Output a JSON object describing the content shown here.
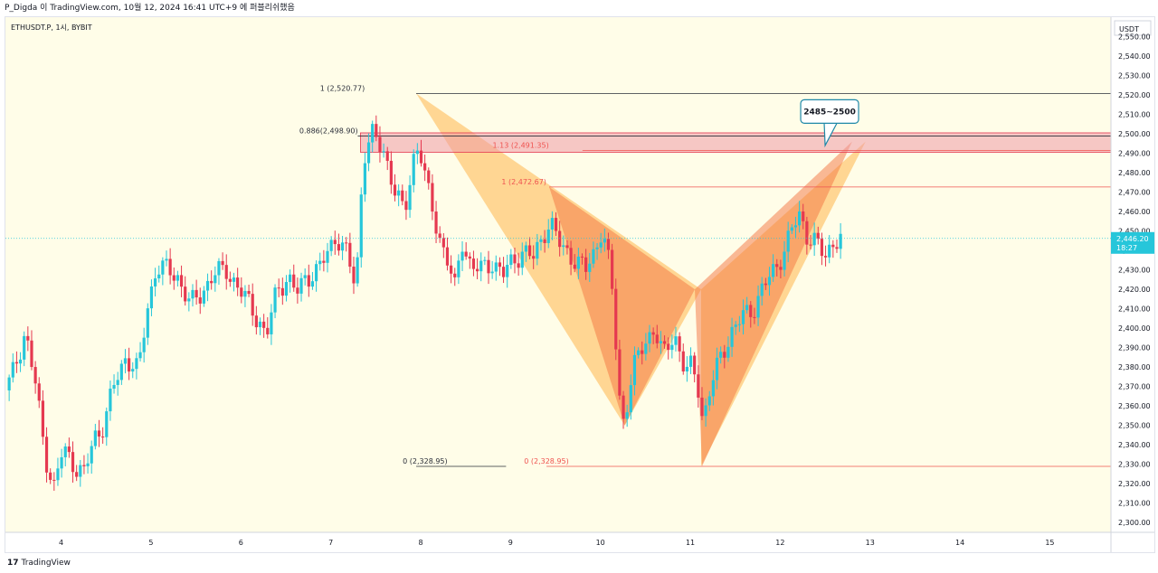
{
  "header": {
    "caption": "P_Digda 이 TradingView.com, 10월 12, 2024 16:41 UTC+9 에 퍼블리쉬했음"
  },
  "footer": {
    "brand": "TradingView",
    "logo_glyph": "17"
  },
  "chart_data": {
    "type": "candlestick",
    "symbol_line": "ETHUSDT.P, 1시, BYBIT",
    "currency": "USDT",
    "y_range": [
      2295,
      2560
    ],
    "y_ticks": [
      "2,550.00",
      "2,540.00",
      "2,530.00",
      "2,520.00",
      "2,510.00",
      "2,500.00",
      "2,490.00",
      "2,480.00",
      "2,470.00",
      "2,460.00",
      "2,450.00",
      "2,440.00",
      "2,430.00",
      "2,420.00",
      "2,410.00",
      "2,400.00",
      "2,390.00",
      "2,380.00",
      "2,370.00",
      "2,360.00",
      "2,350.00",
      "2,340.00",
      "2,330.00",
      "2,320.00",
      "2,310.00",
      "2,300.00"
    ],
    "x_ticks": [
      {
        "label": "4",
        "day": 4
      },
      {
        "label": "5",
        "day": 5
      },
      {
        "label": "6",
        "day": 6
      },
      {
        "label": "7",
        "day": 7
      },
      {
        "label": "8",
        "day": 8
      },
      {
        "label": "9",
        "day": 9
      },
      {
        "label": "10",
        "day": 10
      },
      {
        "label": "11",
        "day": 11
      },
      {
        "label": "12",
        "day": 12
      },
      {
        "label": "13",
        "day": 13
      },
      {
        "label": "14",
        "day": 14
      },
      {
        "label": "15",
        "day": 15
      }
    ],
    "x_range_days": [
      3.38,
      15.68
    ],
    "last_price": {
      "value": 2446.2,
      "label": "2,446.20",
      "countdown": "18:27"
    },
    "colors": {
      "up": "#26c6da",
      "down": "#e53950",
      "background": "#fffde8",
      "price_tag": "#26c6da"
    },
    "price_path": [
      [
        3.38,
        2368
      ],
      [
        3.45,
        2375
      ],
      [
        3.6,
        2398
      ],
      [
        3.72,
        2370
      ],
      [
        3.82,
        2335
      ],
      [
        3.92,
        2318
      ],
      [
        4.02,
        2338
      ],
      [
        4.14,
        2330
      ],
      [
        4.26,
        2325
      ],
      [
        4.36,
        2343
      ],
      [
        4.45,
        2348
      ],
      [
        4.6,
        2372
      ],
      [
        4.72,
        2385
      ],
      [
        4.86,
        2378
      ],
      [
        4.96,
        2410
      ],
      [
        5.06,
        2432
      ],
      [
        5.18,
        2430
      ],
      [
        5.3,
        2426
      ],
      [
        5.44,
        2412
      ],
      [
        5.56,
        2418
      ],
      [
        5.7,
        2428
      ],
      [
        5.84,
        2430
      ],
      [
        5.98,
        2420
      ],
      [
        6.1,
        2412
      ],
      [
        6.22,
        2402
      ],
      [
        6.28,
        2395
      ],
      [
        6.4,
        2420
      ],
      [
        6.52,
        2426
      ],
      [
        6.62,
        2418
      ],
      [
        6.72,
        2426
      ],
      [
        6.86,
        2430
      ],
      [
        6.98,
        2440
      ],
      [
        7.06,
        2448
      ],
      [
        7.18,
        2438
      ],
      [
        7.28,
        2420
      ],
      [
        7.36,
        2488
      ],
      [
        7.45,
        2500
      ],
      [
        7.6,
        2490
      ],
      [
        7.72,
        2470
      ],
      [
        7.82,
        2458
      ],
      [
        7.92,
        2488
      ],
      [
        7.98,
        2495
      ],
      [
        8.08,
        2470
      ],
      [
        8.2,
        2448
      ],
      [
        8.3,
        2435
      ],
      [
        8.38,
        2420
      ],
      [
        8.46,
        2445
      ],
      [
        8.56,
        2432
      ],
      [
        8.68,
        2430
      ],
      [
        8.8,
        2434
      ],
      [
        8.92,
        2428
      ],
      [
        9.02,
        2434
      ],
      [
        9.14,
        2440
      ],
      [
        9.26,
        2436
      ],
      [
        9.38,
        2450
      ],
      [
        9.44,
        2455
      ],
      [
        9.56,
        2442
      ],
      [
        9.7,
        2436
      ],
      [
        9.84,
        2430
      ],
      [
        9.94,
        2440
      ],
      [
        10.02,
        2452
      ],
      [
        10.12,
        2426
      ],
      [
        10.22,
        2360
      ],
      [
        10.26,
        2352
      ],
      [
        10.36,
        2378
      ],
      [
        10.48,
        2392
      ],
      [
        10.6,
        2400
      ],
      [
        10.7,
        2385
      ],
      [
        10.82,
        2398
      ],
      [
        10.94,
        2378
      ],
      [
        11.02,
        2380
      ],
      [
        11.1,
        2368
      ],
      [
        11.14,
        2352
      ],
      [
        11.24,
        2372
      ],
      [
        11.36,
        2388
      ],
      [
        11.46,
        2398
      ],
      [
        11.58,
        2406
      ],
      [
        11.7,
        2410
      ],
      [
        11.82,
        2422
      ],
      [
        11.94,
        2430
      ],
      [
        12.06,
        2442
      ],
      [
        12.14,
        2452
      ],
      [
        12.22,
        2458
      ],
      [
        12.3,
        2448
      ],
      [
        12.4,
        2444
      ],
      [
        12.5,
        2436
      ],
      [
        12.6,
        2446
      ],
      [
        12.68,
        2446.2
      ]
    ],
    "patterns": [
      {
        "fill": "#ffb74d",
        "opacity": 0.55,
        "a": [
          7.95,
          2520.77
        ],
        "b": [
          10.27,
          2350
        ],
        "c": [
          11.12,
          2420
        ],
        "d": [
          11.12,
          2328.95
        ],
        "e": [
          12.95,
          2496
        ]
      },
      {
        "fill": "#f4733f",
        "opacity": 0.5,
        "a": [
          9.43,
          2472.67
        ],
        "b": [
          10.27,
          2350
        ],
        "c": [
          11.05,
          2420
        ],
        "d": [
          11.13,
          2328.95
        ],
        "e": [
          12.8,
          2496
        ]
      }
    ],
    "fib_lines": [
      {
        "price": 2520.77,
        "from": 7.95,
        "label": "1 (2,520.77)",
        "color": "#2a2e39",
        "label_at": 6.88
      },
      {
        "price": 2498.9,
        "from": 7.3,
        "label": "0.886(2,498.90)",
        "color": "#2a2e39",
        "label_at": 6.65
      },
      {
        "price": 2472.67,
        "from": 9.43,
        "label": "1 (2,472.67)",
        "color": "#ef5350",
        "label_at": 8.9
      },
      {
        "price": 2491.35,
        "from": 9.8,
        "label": "1.13 (2,491.35)",
        "color": "#ef5350",
        "label_at": 8.8
      },
      {
        "price": 2328.95,
        "from": 7.95,
        "label": "0 (2,328.95)",
        "color": "#2a2e39",
        "label_at": 7.8,
        "to": 8.95
      },
      {
        "price": 2328.95,
        "from": 9.4,
        "label": "0 (2,328.95)",
        "color": "#ef5350",
        "label_at": 9.15
      }
    ],
    "zone": {
      "top": 2500.5,
      "bottom": 2490.5,
      "from": 7.33,
      "color": "#ef9aa6"
    },
    "callout": {
      "text": "2485~2500",
      "day": 12.55,
      "price": 2511,
      "pointer_day": 12.5,
      "pointer_price": 2494
    }
  }
}
